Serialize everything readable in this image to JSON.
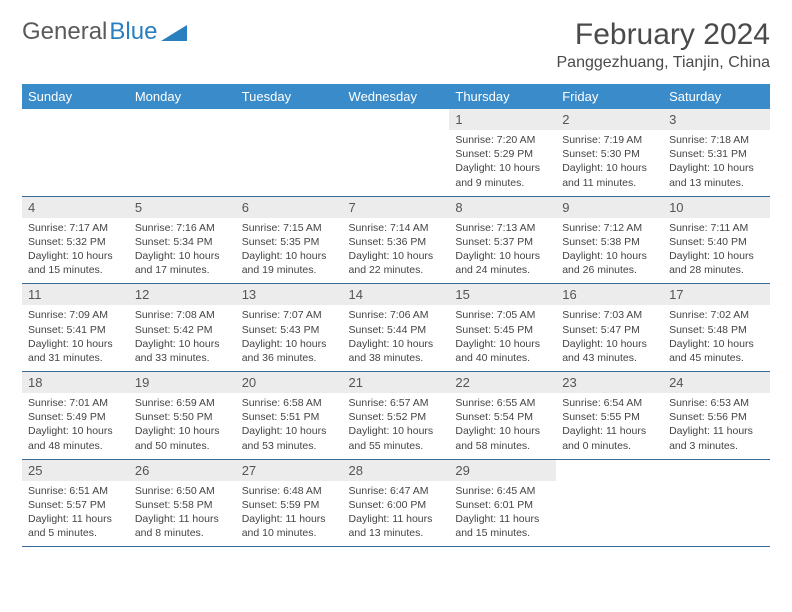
{
  "logo": {
    "text1": "General",
    "text2": "Blue"
  },
  "title": "February 2024",
  "location": "Panggezhuang, Tianjin, China",
  "day_headers": [
    "Sunday",
    "Monday",
    "Tuesday",
    "Wednesday",
    "Thursday",
    "Friday",
    "Saturday"
  ],
  "colors": {
    "header_bg": "#3a8bc9",
    "row_divider": "#3a6a9a",
    "daynum_bg": "#ececec",
    "text": "#444444"
  },
  "weeks": [
    [
      null,
      null,
      null,
      null,
      {
        "n": "1",
        "sr": "Sunrise: 7:20 AM",
        "ss": "Sunset: 5:29 PM",
        "dl": "Daylight: 10 hours and 9 minutes."
      },
      {
        "n": "2",
        "sr": "Sunrise: 7:19 AM",
        "ss": "Sunset: 5:30 PM",
        "dl": "Daylight: 10 hours and 11 minutes."
      },
      {
        "n": "3",
        "sr": "Sunrise: 7:18 AM",
        "ss": "Sunset: 5:31 PM",
        "dl": "Daylight: 10 hours and 13 minutes."
      }
    ],
    [
      {
        "n": "4",
        "sr": "Sunrise: 7:17 AM",
        "ss": "Sunset: 5:32 PM",
        "dl": "Daylight: 10 hours and 15 minutes."
      },
      {
        "n": "5",
        "sr": "Sunrise: 7:16 AM",
        "ss": "Sunset: 5:34 PM",
        "dl": "Daylight: 10 hours and 17 minutes."
      },
      {
        "n": "6",
        "sr": "Sunrise: 7:15 AM",
        "ss": "Sunset: 5:35 PM",
        "dl": "Daylight: 10 hours and 19 minutes."
      },
      {
        "n": "7",
        "sr": "Sunrise: 7:14 AM",
        "ss": "Sunset: 5:36 PM",
        "dl": "Daylight: 10 hours and 22 minutes."
      },
      {
        "n": "8",
        "sr": "Sunrise: 7:13 AM",
        "ss": "Sunset: 5:37 PM",
        "dl": "Daylight: 10 hours and 24 minutes."
      },
      {
        "n": "9",
        "sr": "Sunrise: 7:12 AM",
        "ss": "Sunset: 5:38 PM",
        "dl": "Daylight: 10 hours and 26 minutes."
      },
      {
        "n": "10",
        "sr": "Sunrise: 7:11 AM",
        "ss": "Sunset: 5:40 PM",
        "dl": "Daylight: 10 hours and 28 minutes."
      }
    ],
    [
      {
        "n": "11",
        "sr": "Sunrise: 7:09 AM",
        "ss": "Sunset: 5:41 PM",
        "dl": "Daylight: 10 hours and 31 minutes."
      },
      {
        "n": "12",
        "sr": "Sunrise: 7:08 AM",
        "ss": "Sunset: 5:42 PM",
        "dl": "Daylight: 10 hours and 33 minutes."
      },
      {
        "n": "13",
        "sr": "Sunrise: 7:07 AM",
        "ss": "Sunset: 5:43 PM",
        "dl": "Daylight: 10 hours and 36 minutes."
      },
      {
        "n": "14",
        "sr": "Sunrise: 7:06 AM",
        "ss": "Sunset: 5:44 PM",
        "dl": "Daylight: 10 hours and 38 minutes."
      },
      {
        "n": "15",
        "sr": "Sunrise: 7:05 AM",
        "ss": "Sunset: 5:45 PM",
        "dl": "Daylight: 10 hours and 40 minutes."
      },
      {
        "n": "16",
        "sr": "Sunrise: 7:03 AM",
        "ss": "Sunset: 5:47 PM",
        "dl": "Daylight: 10 hours and 43 minutes."
      },
      {
        "n": "17",
        "sr": "Sunrise: 7:02 AM",
        "ss": "Sunset: 5:48 PM",
        "dl": "Daylight: 10 hours and 45 minutes."
      }
    ],
    [
      {
        "n": "18",
        "sr": "Sunrise: 7:01 AM",
        "ss": "Sunset: 5:49 PM",
        "dl": "Daylight: 10 hours and 48 minutes."
      },
      {
        "n": "19",
        "sr": "Sunrise: 6:59 AM",
        "ss": "Sunset: 5:50 PM",
        "dl": "Daylight: 10 hours and 50 minutes."
      },
      {
        "n": "20",
        "sr": "Sunrise: 6:58 AM",
        "ss": "Sunset: 5:51 PM",
        "dl": "Daylight: 10 hours and 53 minutes."
      },
      {
        "n": "21",
        "sr": "Sunrise: 6:57 AM",
        "ss": "Sunset: 5:52 PM",
        "dl": "Daylight: 10 hours and 55 minutes."
      },
      {
        "n": "22",
        "sr": "Sunrise: 6:55 AM",
        "ss": "Sunset: 5:54 PM",
        "dl": "Daylight: 10 hours and 58 minutes."
      },
      {
        "n": "23",
        "sr": "Sunrise: 6:54 AM",
        "ss": "Sunset: 5:55 PM",
        "dl": "Daylight: 11 hours and 0 minutes."
      },
      {
        "n": "24",
        "sr": "Sunrise: 6:53 AM",
        "ss": "Sunset: 5:56 PM",
        "dl": "Daylight: 11 hours and 3 minutes."
      }
    ],
    [
      {
        "n": "25",
        "sr": "Sunrise: 6:51 AM",
        "ss": "Sunset: 5:57 PM",
        "dl": "Daylight: 11 hours and 5 minutes."
      },
      {
        "n": "26",
        "sr": "Sunrise: 6:50 AM",
        "ss": "Sunset: 5:58 PM",
        "dl": "Daylight: 11 hours and 8 minutes."
      },
      {
        "n": "27",
        "sr": "Sunrise: 6:48 AM",
        "ss": "Sunset: 5:59 PM",
        "dl": "Daylight: 11 hours and 10 minutes."
      },
      {
        "n": "28",
        "sr": "Sunrise: 6:47 AM",
        "ss": "Sunset: 6:00 PM",
        "dl": "Daylight: 11 hours and 13 minutes."
      },
      {
        "n": "29",
        "sr": "Sunrise: 6:45 AM",
        "ss": "Sunset: 6:01 PM",
        "dl": "Daylight: 11 hours and 15 minutes."
      },
      null,
      null
    ]
  ]
}
